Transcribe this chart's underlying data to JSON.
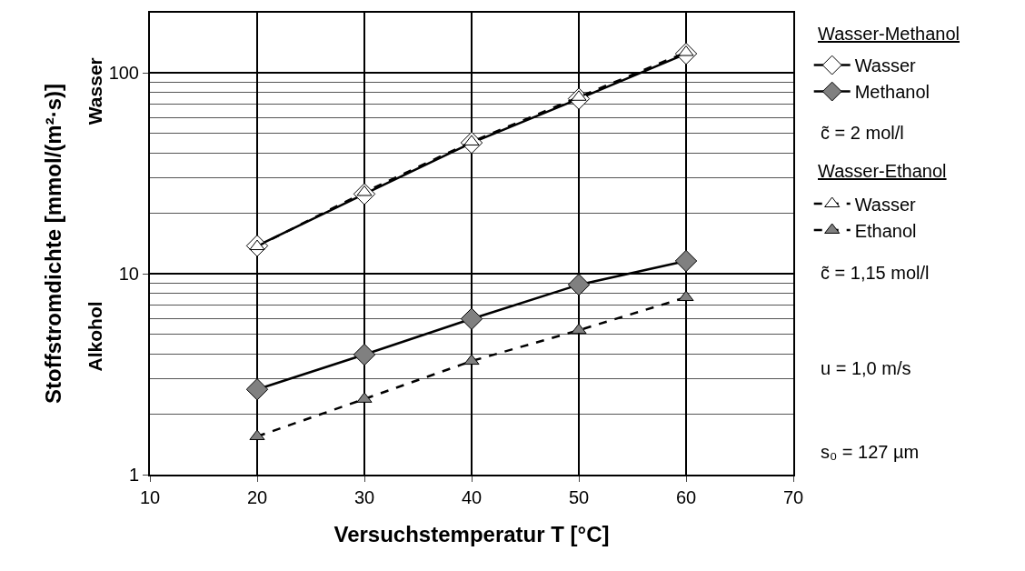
{
  "chart_data": {
    "type": "line",
    "xlabel": "Versuchstemperatur T [°C]",
    "ylabel": "Stoffstromdichte [mmol/(m²·s)]",
    "x": [
      20,
      30,
      40,
      50,
      60
    ],
    "series": [
      {
        "name": "Wasser",
        "color": "#ffffff",
        "marker": "diamond",
        "line_style": "solid",
        "values": [
          13.8,
          25,
          45,
          74.6,
          125
        ]
      },
      {
        "name": "Methanol",
        "color": "#808080",
        "marker": "diamond",
        "line_style": "solid",
        "values": [
          2.66,
          3.96,
          5.97,
          8.83,
          11.6
        ]
      },
      {
        "name": "Wasser",
        "color": "#ffffff",
        "marker": "triangle",
        "line_style": "dashed",
        "values": [
          13.7,
          25.5,
          45.5,
          76,
          127
        ]
      },
      {
        "name": "Ethanol",
        "color": "#808080",
        "marker": "triangle",
        "line_style": "dashed",
        "values": [
          1.55,
          2.38,
          3.68,
          5.24,
          7.64
        ]
      }
    ],
    "annotations": [
      "Wasser",
      "Alkohol",
      "Wasser-Methanol",
      "c̃ = 2 mol/l",
      "Wasser-Ethanol",
      "c̃ = 1,15 mol/l",
      "u = 1,0 m/s",
      "s₀ = 127 µm"
    ],
    "xlim": [
      10,
      70
    ],
    "xticks": [
      10,
      20,
      30,
      40,
      50,
      60,
      70
    ],
    "ylim": [
      1,
      200
    ],
    "yticks": [
      1,
      10,
      100
    ],
    "log": "y",
    "grid": true,
    "legend": "right"
  }
}
